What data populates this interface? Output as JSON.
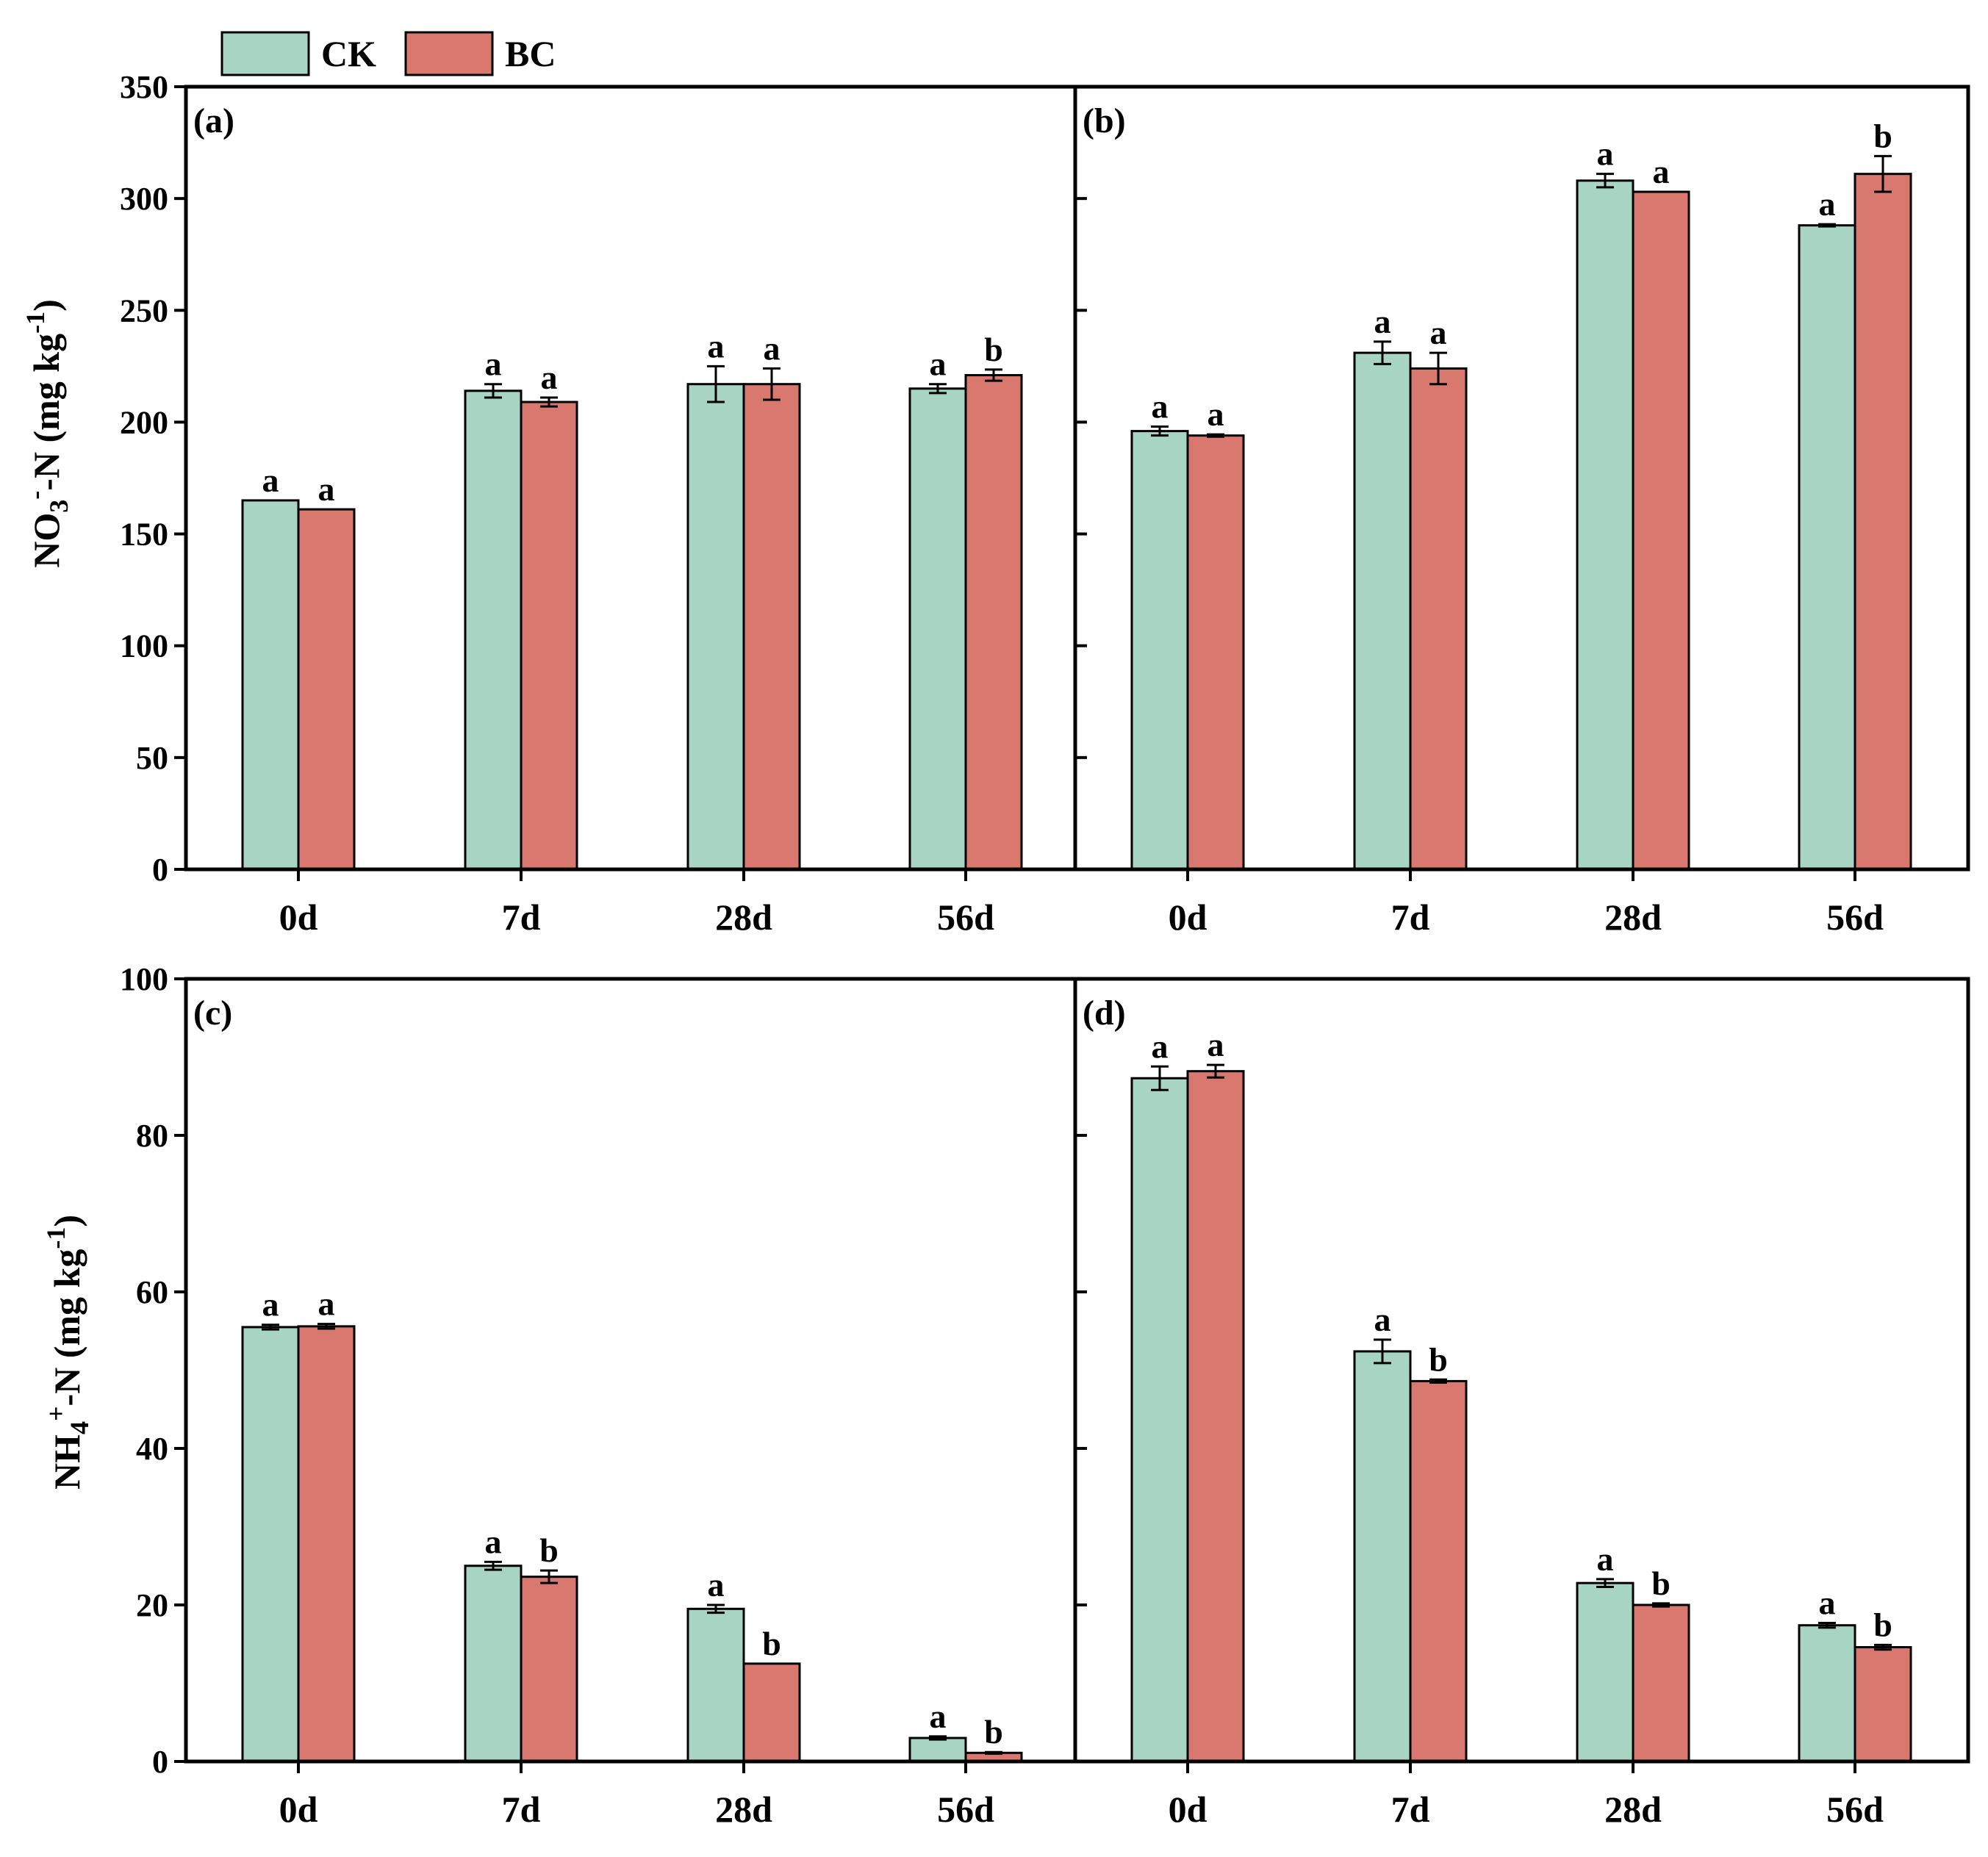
{
  "legend": {
    "entries": [
      {
        "name": "CK",
        "color": "#a8d5c3"
      },
      {
        "name": "BC",
        "color": "#d9786f"
      }
    ]
  },
  "chart_data": [
    {
      "panel": "(a)",
      "type": "bar",
      "categories": [
        "0d",
        "7d",
        "28d",
        "56d"
      ],
      "ylabel": "NO3--N (mg kg-1)",
      "ylim": [
        0,
        350
      ],
      "yticks": [
        0,
        50,
        100,
        150,
        200,
        250,
        300,
        350
      ],
      "series": [
        {
          "name": "CK",
          "values": [
            165,
            214,
            217,
            215
          ],
          "errors": [
            0,
            3,
            8,
            2
          ],
          "significance": [
            "a",
            "a",
            "a",
            "a"
          ]
        },
        {
          "name": "BC",
          "values": [
            161,
            209,
            217,
            221
          ],
          "errors": [
            0,
            2,
            7,
            2.5
          ],
          "significance": [
            "a",
            "a",
            "a",
            "b"
          ]
        }
      ]
    },
    {
      "panel": "(b)",
      "type": "bar",
      "categories": [
        "0d",
        "7d",
        "28d",
        "56d"
      ],
      "ylim": [
        0,
        350
      ],
      "series": [
        {
          "name": "CK",
          "values": [
            196,
            231,
            308,
            288
          ],
          "errors": [
            2,
            5,
            3,
            0.5
          ],
          "significance": [
            "a",
            "a",
            "a",
            "a"
          ]
        },
        {
          "name": "BC",
          "values": [
            194,
            224,
            303,
            311
          ],
          "errors": [
            0.5,
            7,
            0,
            8
          ],
          "significance": [
            "a",
            "a",
            "a",
            "b"
          ]
        }
      ]
    },
    {
      "panel": "(c)",
      "type": "bar",
      "categories": [
        "0d",
        "7d",
        "28d",
        "56d"
      ],
      "ylabel": "NH4+-N (mg kg-1)",
      "ylim": [
        0,
        100
      ],
      "yticks": [
        0,
        20,
        40,
        60,
        80,
        100
      ],
      "series": [
        {
          "name": "CK",
          "values": [
            55.5,
            25,
            19.5,
            3
          ],
          "errors": [
            0.3,
            0.5,
            0.5,
            0.2
          ],
          "significance": [
            "a",
            "a",
            "a",
            "a"
          ]
        },
        {
          "name": "BC",
          "values": [
            55.6,
            23.6,
            12.5,
            1.1
          ],
          "errors": [
            0.3,
            0.8,
            0,
            0.1
          ],
          "significance": [
            "a",
            "b",
            "b",
            "b"
          ]
        }
      ]
    },
    {
      "panel": "(d)",
      "type": "bar",
      "categories": [
        "0d",
        "7d",
        "28d",
        "56d"
      ],
      "ylim": [
        0,
        100
      ],
      "series": [
        {
          "name": "CK",
          "values": [
            87.3,
            52.4,
            22.8,
            17.4
          ],
          "errors": [
            1.5,
            1.5,
            0.5,
            0.3
          ],
          "significance": [
            "a",
            "a",
            "a",
            "a"
          ]
        },
        {
          "name": "BC",
          "values": [
            88.2,
            48.6,
            20,
            14.6
          ],
          "errors": [
            0.8,
            0.2,
            0.2,
            0.3
          ],
          "significance": [
            "a",
            "b",
            "b",
            "b"
          ]
        }
      ]
    }
  ]
}
